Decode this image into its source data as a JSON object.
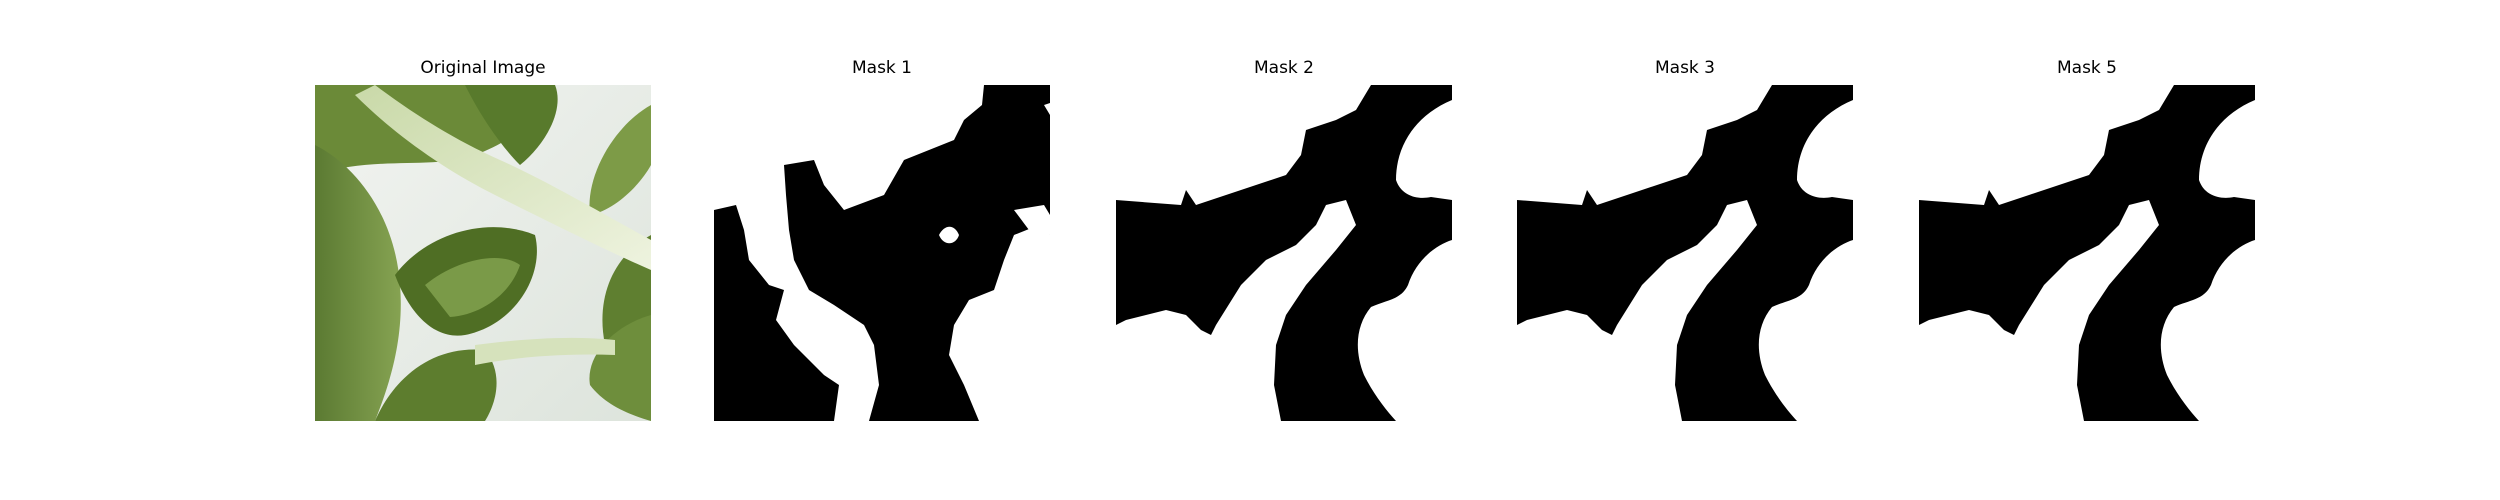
{
  "figure": {
    "panels": [
      {
        "title": "Original Image",
        "kind": "photo"
      },
      {
        "title": "Mask 1",
        "kind": "mask"
      },
      {
        "title": "Mask 2",
        "kind": "mask"
      },
      {
        "title": "Mask 3",
        "kind": "mask"
      },
      {
        "title": "Mask 5",
        "kind": "mask"
      }
    ]
  },
  "colors": {
    "mask_foreground": "#000000",
    "mask_background": "#ffffff",
    "leaf_dark": "#4f6e2a",
    "leaf_mid": "#6f8e3e",
    "leaf_light": "#9fbb6b",
    "stem": "#dfe8c8",
    "backdrop": "#e9eeee"
  }
}
